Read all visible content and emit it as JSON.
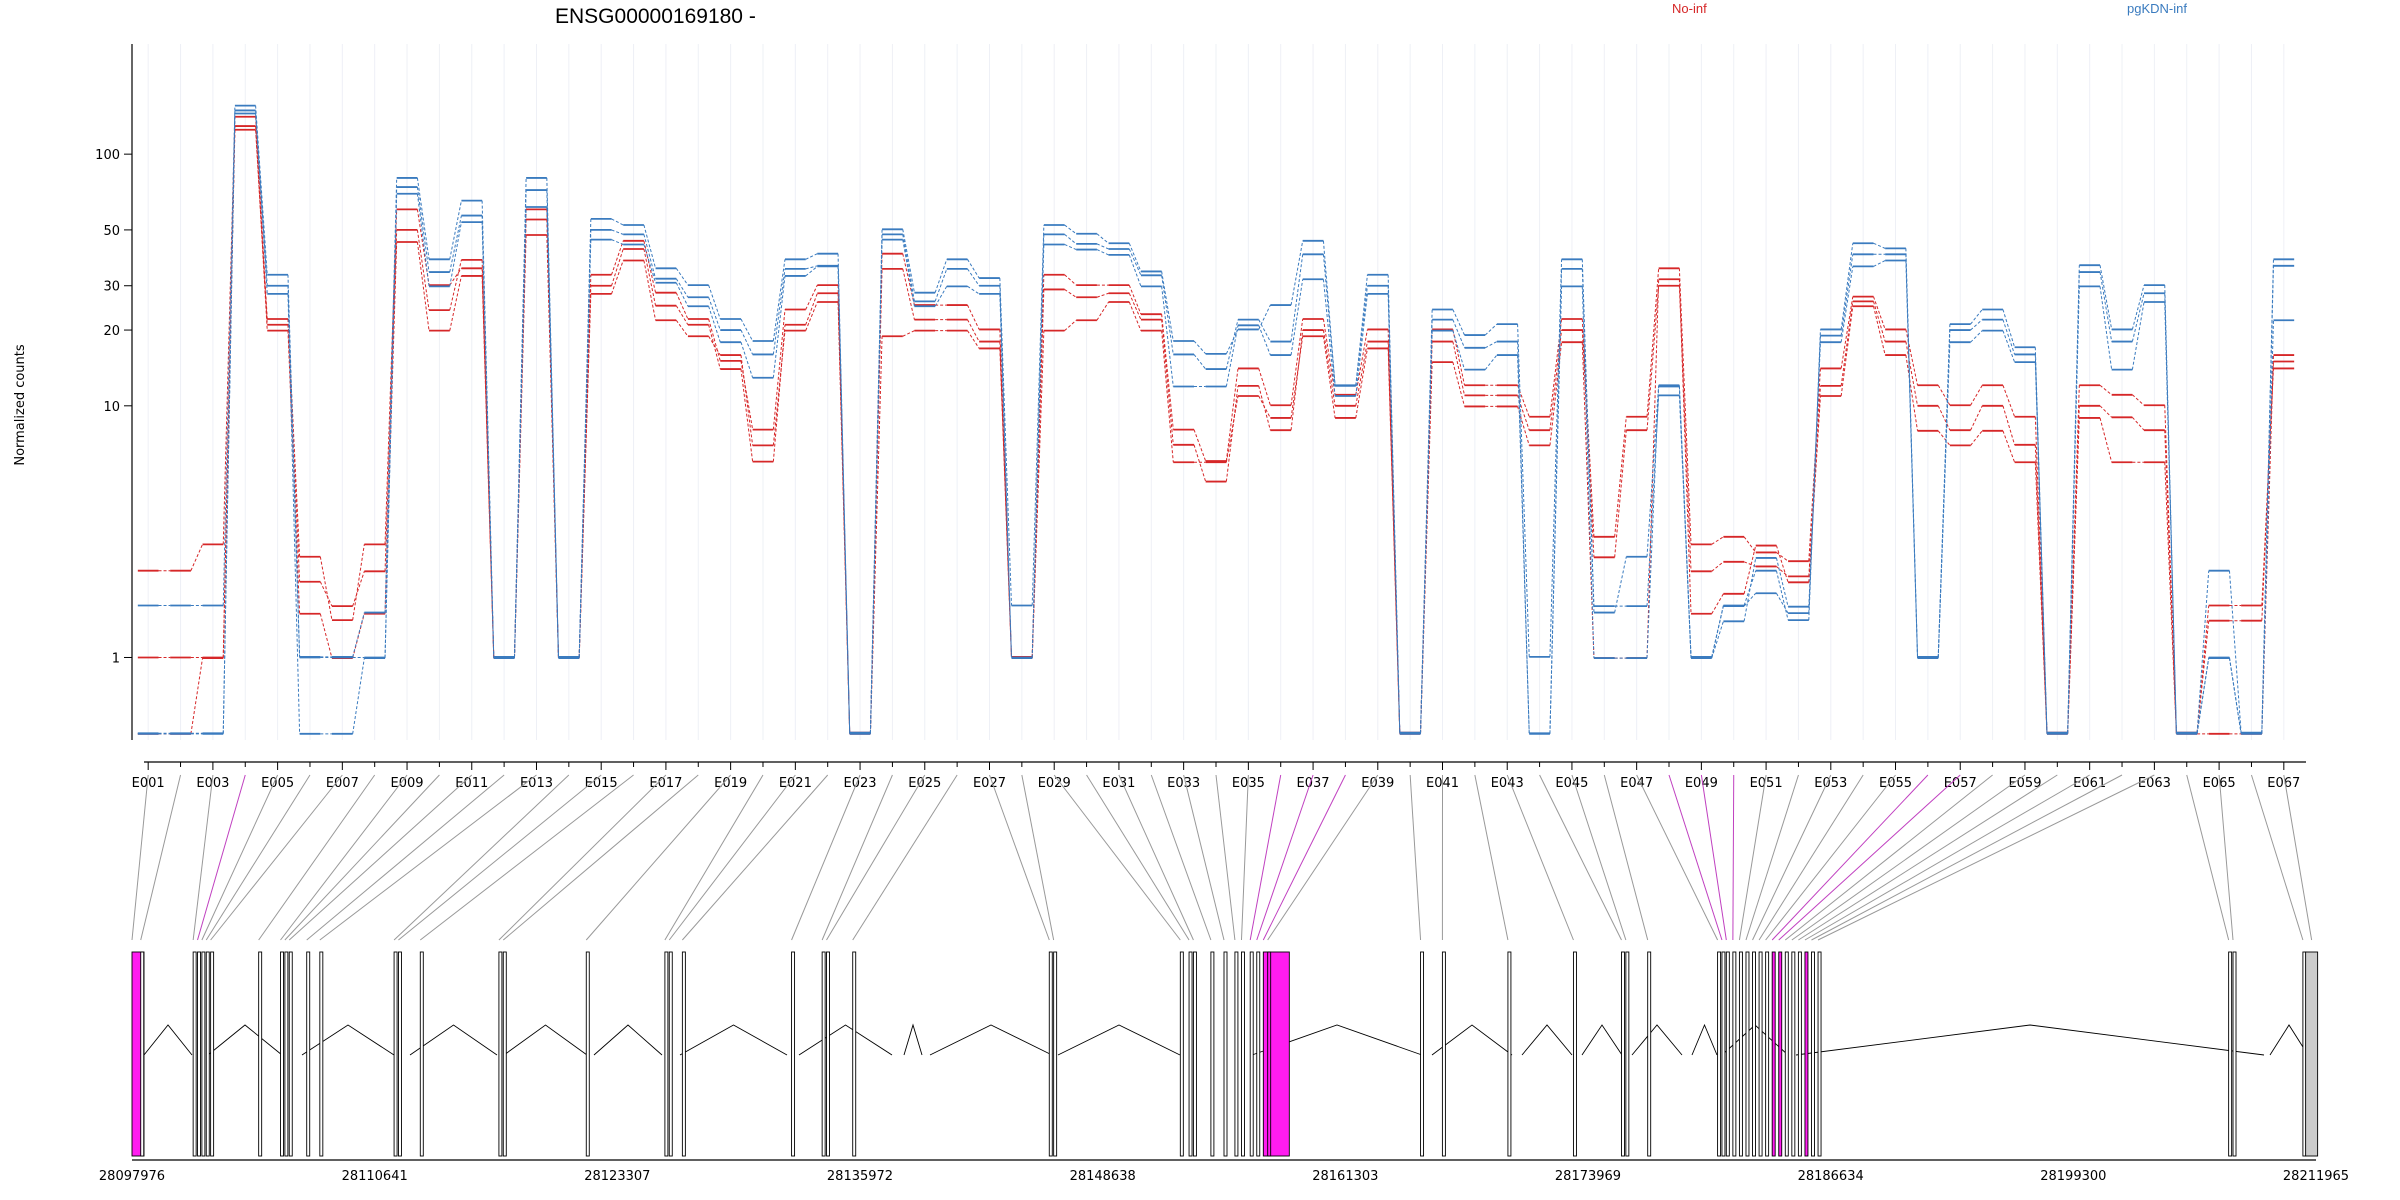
{
  "chart_data": {
    "type": "line",
    "title": "ENSG00000169180 -",
    "ylabel": "Normalized counts",
    "yscale": "log",
    "ylim": [
      0.47,
      250
    ],
    "ytick_values": [
      1,
      10,
      20,
      30,
      50,
      100
    ],
    "ytick_labels": [
      "1",
      "10",
      "20",
      "30",
      "50",
      "100"
    ],
    "x_tick_labels": [
      "E001",
      "E003",
      "E005",
      "E007",
      "E009",
      "E011",
      "E013",
      "E015",
      "E017",
      "E019",
      "E021",
      "E023",
      "E025",
      "E027",
      "E029",
      "E031",
      "E033",
      "E035",
      "E037",
      "E039",
      "E041",
      "E043",
      "E045",
      "E047",
      "E049",
      "E051",
      "E053",
      "E055",
      "E057",
      "E059",
      "E061",
      "E063",
      "E065",
      "E067"
    ],
    "grid": true,
    "legend": [
      {
        "name": "No-inf",
        "color": "#d62728"
      },
      {
        "name": "pgKDN-inf",
        "color": "#3a7bbf"
      }
    ],
    "series": [
      {
        "group": "No-inf",
        "values": [
          2.2,
          2.2,
          2.8,
          140,
          22,
          2.5,
          1.4,
          2.8,
          60,
          30,
          35,
          1,
          60,
          1,
          33,
          45,
          28,
          22,
          15,
          8,
          24,
          30,
          0.5,
          40,
          25,
          25,
          20,
          1,
          33,
          30,
          30,
          23,
          8,
          6,
          14,
          10,
          22,
          11,
          20,
          0.5,
          20,
          12,
          12,
          9,
          22,
          3,
          9,
          35,
          2.8,
          3,
          2.6,
          2.4,
          14,
          27,
          20,
          12,
          10,
          12,
          9,
          0.5,
          12,
          11,
          10,
          0.5,
          1.6,
          1.6,
          14
        ]
      },
      {
        "group": "No-inf",
        "values": [
          1,
          1,
          1,
          125,
          21,
          2,
          1.6,
          2.2,
          50,
          24,
          38,
          1,
          55,
          1,
          30,
          42,
          25,
          21,
          14,
          6,
          21,
          28,
          0.5,
          35,
          22,
          22,
          18,
          1,
          29,
          27,
          28,
          22,
          7,
          5,
          12,
          8,
          20,
          10,
          18,
          0.5,
          18,
          11,
          11,
          8,
          20,
          2.5,
          8,
          30,
          2.2,
          2.4,
          2.3,
          2.1,
          12,
          26,
          18,
          10,
          8,
          10,
          7,
          0.5,
          10,
          9,
          8,
          0.5,
          1.4,
          1.4,
          15
        ]
      },
      {
        "group": "No-inf",
        "values": [
          0.5,
          0.5,
          1,
          130,
          20,
          1.5,
          1,
          1.5,
          45,
          20,
          33,
          1,
          48,
          1,
          28,
          38,
          22,
          19,
          16,
          7,
          20,
          26,
          0.5,
          19,
          20,
          20,
          17,
          1,
          20,
          22,
          26,
          20,
          6,
          6,
          11,
          9,
          19,
          9,
          17,
          0.5,
          15,
          10,
          10,
          7,
          18,
          1,
          1,
          32,
          1.5,
          1.8,
          2.8,
          2,
          11,
          25,
          16,
          8,
          7,
          8,
          6,
          0.5,
          9,
          6,
          6,
          0.5,
          0.5,
          0.5,
          16
        ]
      },
      {
        "group": "pgKDN-inf",
        "values": [
          1.6,
          1.6,
          1.6,
          155,
          33,
          1,
          1,
          1.5,
          80,
          38,
          65,
          1,
          80,
          1,
          55,
          52,
          35,
          30,
          22,
          18,
          38,
          40,
          0.5,
          50,
          28,
          38,
          32,
          1.6,
          52,
          48,
          44,
          34,
          18,
          16,
          20,
          25,
          45,
          12,
          33,
          0.5,
          24,
          19,
          21,
          1,
          38,
          1.5,
          2.5,
          12,
          1,
          1.6,
          2.2,
          1.4,
          20,
          44,
          42,
          1,
          21,
          24,
          17,
          0.5,
          36,
          20,
          30,
          0.5,
          2.2,
          0.5,
          38
        ]
      },
      {
        "group": "pgKDN-inf",
        "values": [
          0.5,
          0.5,
          0.5,
          145,
          30,
          1,
          1,
          1,
          74,
          34,
          57,
          1,
          72,
          1,
          50,
          48,
          32,
          27,
          20,
          16,
          35,
          36,
          0.5,
          48,
          26,
          35,
          30,
          1,
          48,
          44,
          42,
          33,
          16,
          14,
          22,
          18,
          40,
          12,
          30,
          0.5,
          22,
          17,
          18,
          0.5,
          35,
          1.6,
          1.6,
          11,
          1,
          1.6,
          1.8,
          1.5,
          19,
          40,
          40,
          1,
          20,
          22,
          16,
          0.5,
          34,
          18,
          28,
          0.5,
          1,
          0.5,
          36
        ]
      },
      {
        "group": "pgKDN-inf",
        "values": [
          0.5,
          0.5,
          0.5,
          150,
          28,
          0.5,
          0.5,
          1,
          70,
          30,
          54,
          1,
          62,
          1,
          46,
          44,
          31,
          25,
          18,
          13,
          33,
          36,
          0.5,
          46,
          25,
          30,
          28,
          1,
          44,
          42,
          40,
          30,
          12,
          12,
          21,
          16,
          32,
          11,
          28,
          0.5,
          20,
          14,
          16,
          0.5,
          30,
          1,
          1,
          12,
          1,
          1.4,
          2.5,
          1.6,
          18,
          36,
          38,
          1,
          18,
          20,
          15,
          0.5,
          30,
          14,
          26,
          0.5,
          1,
          0.5,
          22
        ]
      }
    ]
  },
  "gene_model": {
    "coordinate_labels": [
      "28097976",
      "28110641",
      "28123307",
      "28135972",
      "28148638",
      "28161303",
      "28173969",
      "28186634",
      "28199300",
      "28211965"
    ]
  }
}
